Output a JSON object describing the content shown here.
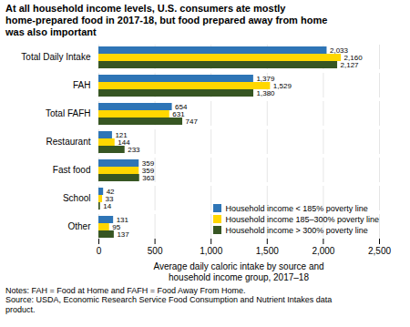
{
  "chart_data": {
    "type": "bar",
    "orientation": "horizontal",
    "title": "At all household income levels, U.S. consumers ate mostly\nhome-prepared food in 2017-18, but food prepared away from home\nwas also important",
    "categories": [
      "Total Daily Intake",
      "FAH",
      "Total FAFH",
      "Restaurant",
      "Fast food",
      "School",
      "Other"
    ],
    "series": [
      {
        "name": "Household income < 185% poverty line",
        "color": "#2E75B6",
        "values": [
          2033,
          1379,
          654,
          121,
          359,
          42,
          131
        ],
        "value_labels": [
          "2,033",
          "1,379",
          "654",
          "121",
          "359",
          "42",
          "131"
        ]
      },
      {
        "name": "Household income 185–300% poverty line",
        "color": "#FFD700",
        "values": [
          2160,
          1529,
          631,
          144,
          359,
          33,
          95
        ],
        "value_labels": [
          "2,160",
          "1,529",
          "631",
          "144",
          "359",
          "33",
          "95"
        ]
      },
      {
        "name": "Household income > 300% poverty line",
        "color": "#375623",
        "values": [
          2127,
          1380,
          747,
          233,
          363,
          14,
          137
        ],
        "value_labels": [
          "2,127",
          "1,380",
          "747",
          "233",
          "363",
          "14",
          "137"
        ]
      }
    ],
    "xlabel": "Average daily caloric intake by source and\nhousehold income group, 2017–18",
    "xlim": [
      0,
      2500
    ],
    "xticks": [
      0,
      500,
      {
        "value": 1000,
        "label": "1,000"
      },
      {
        "value": 1500,
        "label": "1,500"
      },
      {
        "value": 2000,
        "label": "2,000"
      },
      {
        "value": 2500,
        "label": "2,500"
      }
    ],
    "grid": true,
    "legend": "lower right",
    "data_labels": true,
    "notes": [
      "Notes: FAH = Food at Home and FAFH = Food Away From Home.",
      "Source: USDA, Economic Research Service Food Consumption and Nutrient Intakes data",
      "product."
    ]
  }
}
